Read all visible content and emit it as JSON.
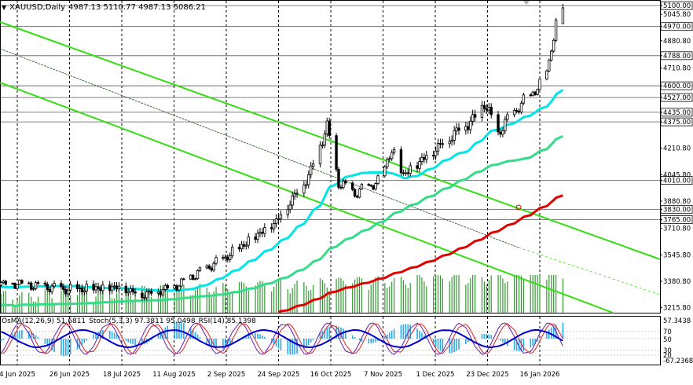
{
  "header": {
    "symbol": "XAUUSD,Daily",
    "ohlc": "4987.13 5110.77 4987.13 5086.21"
  },
  "indicator_header": {
    "osma": "OsMA(12,26,9) 51.6811",
    "stoch": "Stoch(5,3,3) 97.3811 95.0498",
    "rsi": "RSI(14) 85.1398"
  },
  "colors": {
    "bull_ma_fast": "#00e5e5",
    "ma_mid": "#33dd88",
    "ma_slow": "#e00000",
    "channel": "#33dd11",
    "volume": "#339933",
    "osma_hist": "#2aa8e8",
    "stoch_main": "#6a1aa8",
    "stoch_signal": "#dd2222",
    "rsi": "#0000cc",
    "candle": "#000000"
  },
  "chart_data": {
    "type": "candlestick",
    "price_axis_ticks": [
      "5100.00",
      "5045.80",
      "4970.00",
      "4880.80",
      "4788.00",
      "4710.80",
      "4600.00",
      "4527.00",
      "4435.00",
      "4375.00",
      "4210.80",
      "4045.80",
      "4010.00",
      "3880.80",
      "3830.00",
      "3765.00",
      "3710.80",
      "3545.80",
      "3380.80",
      "3215.80"
    ],
    "highlighted_levels": [
      5100.0,
      4970.0,
      4788.0,
      4600.0,
      4527.0,
      4435.0,
      4375.0,
      4010.0,
      3830.0,
      3765.0
    ],
    "time_axis_ticks": [
      "4 Jun 2025",
      "26 Jun 2025",
      "18 Jul 2025",
      "11 Aug 2025",
      "2 Sep 2025",
      "24 Sep 2025",
      "16 Oct 2025",
      "7 Nov 2025",
      "1 Dec 2025",
      "23 Dec 2025",
      "16 Jan 2026"
    ],
    "indicator_axis_ticks": [
      "57.3438",
      "70",
      "50",
      "30",
      "20",
      "-67.2368"
    ],
    "last_bar": {
      "open": 4987.13,
      "high": 5110.77,
      "low": 4987.13,
      "close": 5086.21
    },
    "price_path": [
      [
        "4 Jun 2025",
        3370
      ],
      [
        "26 Jun 2025",
        3330
      ],
      [
        "18 Jul 2025",
        3350
      ],
      [
        "28 Jul 2025",
        3300
      ],
      [
        "11 Aug 2025",
        3350
      ],
      [
        "2 Sep 2025",
        3530
      ],
      [
        "24 Sep 2025",
        3760
      ],
      [
        "8 Oct 2025",
        4040
      ],
      [
        "16 Oct 2025",
        4350
      ],
      [
        "21 Oct 2025",
        4000
      ],
      [
        "28 Oct 2025",
        3930
      ],
      [
        "7 Nov 2025",
        4000
      ],
      [
        "13 Nov 2025",
        4200
      ],
      [
        "18 Nov 2025",
        4050
      ],
      [
        "1 Dec 2025",
        4200
      ],
      [
        "12 Dec 2025",
        4330
      ],
      [
        "19 Dec 2025",
        4400
      ],
      [
        "23 Dec 2025",
        4500
      ],
      [
        "29 Dec 2025",
        4300
      ],
      [
        "31 Dec 2025",
        4350
      ],
      [
        "7 Jan 2026",
        4470
      ],
      [
        "16 Jan 2026",
        4600
      ],
      [
        "20 Jan 2026",
        4750
      ],
      [
        "23 Jan 2026",
        4980
      ],
      [
        "26 Jan 2026",
        5086
      ]
    ]
  }
}
